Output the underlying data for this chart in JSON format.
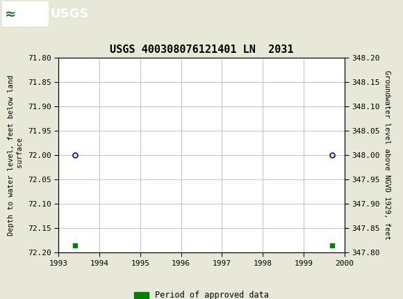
{
  "title": "USGS 400308076121401 LN  2031",
  "ylabel_left": "Depth to water level, feet below land\n surface",
  "ylabel_right": "Groundwater level above NGVD 1929, feet",
  "header_color": "#1a7040",
  "header_border_color": "#cccccc",
  "xlim": [
    1993.0,
    2000.0
  ],
  "ylim_left_top": 71.8,
  "ylim_left_bottom": 72.2,
  "ylim_right_top": 348.2,
  "ylim_right_bottom": 347.8,
  "xticks": [
    1993,
    1994,
    1995,
    1996,
    1997,
    1998,
    1999,
    2000
  ],
  "yticks_left": [
    71.8,
    71.85,
    71.9,
    71.95,
    72.0,
    72.05,
    72.1,
    72.15,
    72.2
  ],
  "yticks_right": [
    348.2,
    348.15,
    348.1,
    348.05,
    348.0,
    347.95,
    347.9,
    347.85,
    347.8
  ],
  "circle_points_x": [
    1993.4,
    1999.7
  ],
  "circle_points_y": [
    72.0,
    72.0
  ],
  "square_points_x": [
    1993.4,
    1999.7
  ],
  "square_points_y": [
    72.185,
    72.185
  ],
  "circle_color": "#0000cc",
  "square_color": "#008000",
  "plot_bg_color": "#ffffff",
  "fig_bg_color": "#e8e8d8",
  "grid_color": "#bbbbbb",
  "legend_label": "Period of approved data",
  "title_fontsize": 11,
  "tick_fontsize": 8,
  "ylabel_fontsize": 7.5
}
